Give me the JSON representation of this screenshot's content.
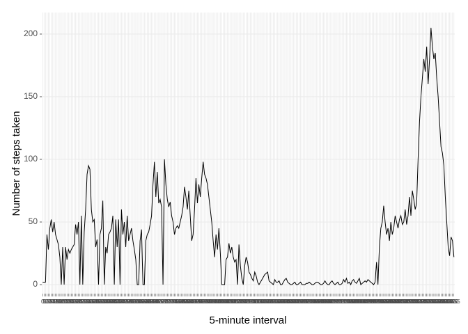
{
  "chart_data": {
    "type": "line",
    "x_label": "5-minute interval",
    "y_label": "Number of steps taken",
    "color": "#000000",
    "ylim": [
      -7.2,
      217.2
    ],
    "yticks": [
      0,
      50,
      100,
      150,
      200
    ],
    "grid": true,
    "categories": [
      "0",
      "5",
      "10",
      "15",
      "20",
      "25",
      "30",
      "35",
      "40",
      "45",
      "50",
      "55",
      "100",
      "105",
      "110",
      "115",
      "120",
      "125",
      "130",
      "135",
      "140",
      "145",
      "150",
      "155",
      "200",
      "205",
      "210",
      "215",
      "220",
      "225",
      "230",
      "235",
      "240",
      "245",
      "250",
      "255",
      "300",
      "305",
      "310",
      "315",
      "320",
      "325",
      "330",
      "335",
      "340",
      "345",
      "350",
      "355",
      "400",
      "405",
      "410",
      "415",
      "420",
      "425",
      "430",
      "435",
      "440",
      "445",
      "450",
      "455",
      "500",
      "505",
      "510",
      "515",
      "520",
      "525",
      "530",
      "535",
      "540",
      "545",
      "550",
      "555",
      "600",
      "605",
      "610",
      "615",
      "620",
      "625",
      "630",
      "635",
      "640",
      "645",
      "650",
      "655",
      "700",
      "705",
      "710",
      "715",
      "720",
      "725",
      "730",
      "735",
      "740",
      "745",
      "750",
      "755",
      "800",
      "805",
      "810",
      "815",
      "820",
      "825",
      "830",
      "835",
      "840",
      "845",
      "850",
      "855",
      "900",
      "905",
      "910",
      "915",
      "920",
      "925",
      "930",
      "935",
      "940",
      "945",
      "950",
      "955",
      "1000",
      "1005",
      "1010",
      "1015",
      "1020",
      "1025",
      "1030",
      "1035",
      "1040",
      "1045",
      "1050",
      "1055",
      "1100",
      "1105",
      "1110",
      "1115",
      "1120",
      "1125",
      "1130",
      "1135",
      "1140",
      "1145",
      "1150",
      "1155",
      "1200",
      "1205",
      "1210",
      "1215",
      "1220",
      "1225",
      "1230",
      "1235",
      "1240",
      "1245",
      "1250",
      "1255",
      "1300",
      "1305",
      "1310",
      "1315",
      "1320",
      "1325",
      "1330",
      "1335",
      "1340",
      "1345",
      "1350",
      "1355",
      "1400",
      "1405",
      "1410",
      "1415",
      "1420",
      "1425",
      "1430",
      "1435",
      "1440",
      "1445",
      "1450",
      "1455",
      "1500",
      "1505",
      "1510",
      "1515",
      "1520",
      "1525",
      "1530",
      "1535",
      "1540",
      "1545",
      "1550",
      "1555",
      "1600",
      "1605",
      "1610",
      "1615",
      "1620",
      "1625",
      "1630",
      "1635",
      "1640",
      "1645",
      "1650",
      "1655",
      "1700",
      "1705",
      "1710",
      "1715",
      "1720",
      "1725",
      "1730",
      "1735",
      "1740",
      "1745",
      "1750",
      "1755",
      "1800",
      "1805",
      "1810",
      "1815",
      "1820",
      "1825",
      "1830",
      "1835",
      "1840",
      "1845",
      "1850",
      "1855",
      "1900",
      "1905",
      "1910",
      "1915",
      "1920",
      "1925",
      "1930",
      "1935",
      "1940",
      "1945",
      "1950",
      "1955",
      "2000",
      "2005",
      "2010",
      "2015",
      "2020",
      "2025",
      "2030",
      "2035",
      "2040",
      "2045",
      "2050",
      "2055",
      "2100",
      "2105",
      "2110",
      "2115",
      "2120",
      "2125",
      "2130",
      "2135",
      "2140",
      "2145",
      "2150",
      "2155",
      "2200",
      "2205",
      "2210",
      "2215",
      "2220",
      "2225",
      "2230",
      "2235",
      "2240",
      "2245",
      "2250",
      "2255",
      "2300",
      "2305",
      "2310",
      "2315",
      "2320",
      "2325",
      "2330",
      "2335",
      "2340",
      "2345",
      "2350",
      "2355"
    ],
    "values": [
      2,
      2,
      2,
      40,
      28,
      45,
      52,
      42,
      50,
      40,
      36,
      32,
      22,
      0,
      30,
      0,
      30,
      20,
      28,
      25,
      28,
      30,
      32,
      48,
      40,
      50,
      0,
      55,
      0,
      42,
      60,
      88,
      95,
      92,
      60,
      50,
      52,
      30,
      36,
      0,
      40,
      45,
      67,
      0,
      30,
      25,
      40,
      42,
      45,
      55,
      0,
      52,
      30,
      52,
      0,
      60,
      40,
      50,
      30,
      55,
      35,
      40,
      45,
      35,
      28,
      20,
      0,
      0,
      35,
      44,
      0,
      0,
      35,
      40,
      42,
      48,
      55,
      80,
      98,
      70,
      90,
      65,
      68,
      62,
      0,
      100,
      80,
      68,
      62,
      66,
      55,
      50,
      40,
      45,
      47,
      45,
      50,
      55,
      62,
      78,
      70,
      60,
      75,
      55,
      35,
      40,
      60,
      85,
      65,
      80,
      70,
      85,
      98,
      88,
      85,
      80,
      70,
      60,
      50,
      35,
      22,
      40,
      28,
      45,
      25,
      0,
      0,
      0,
      20,
      22,
      33,
      25,
      30,
      22,
      18,
      20,
      0,
      32,
      15,
      5,
      0,
      15,
      22,
      18,
      10,
      8,
      5,
      3,
      10,
      7,
      2,
      0,
      2,
      4,
      6,
      8,
      9,
      10,
      3,
      2,
      1,
      0,
      4,
      2,
      2,
      3,
      0,
      0,
      2,
      4,
      5,
      2,
      1,
      0,
      0,
      1,
      2,
      0,
      0,
      1,
      2,
      0,
      0,
      0,
      1,
      1,
      2,
      1,
      0,
      0,
      1,
      2,
      2,
      1,
      0,
      0,
      1,
      3,
      1,
      0,
      0,
      2,
      3,
      1,
      0,
      1,
      2,
      0,
      0,
      1,
      4,
      2,
      5,
      1,
      2,
      0,
      3,
      4,
      2,
      1,
      3,
      5,
      0,
      1,
      2,
      3,
      2,
      4,
      3,
      2,
      1,
      0,
      2,
      18,
      0,
      30,
      45,
      50,
      63,
      50,
      40,
      45,
      35,
      50,
      40,
      45,
      55,
      50,
      45,
      52,
      55,
      48,
      50,
      60,
      48,
      55,
      70,
      55,
      75,
      68,
      60,
      65,
      100,
      130,
      150,
      165,
      180,
      170,
      190,
      160,
      180,
      205,
      190,
      180,
      185,
      165,
      150,
      130,
      110,
      105,
      95,
      70,
      50,
      30,
      23,
      38,
      35,
      22
    ]
  }
}
